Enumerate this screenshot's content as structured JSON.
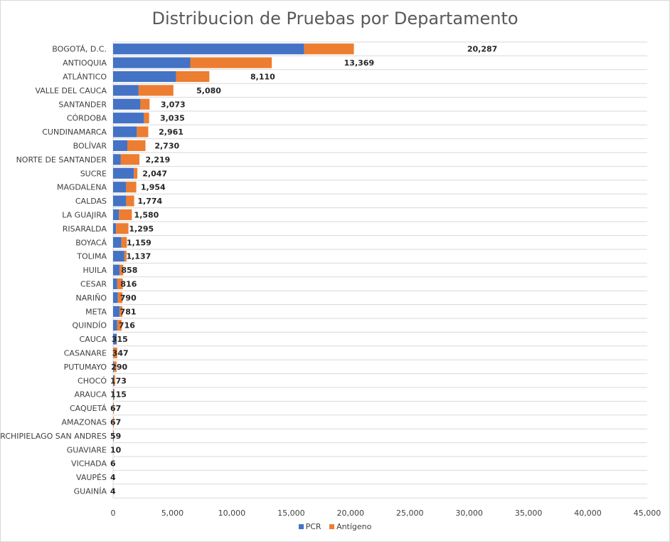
{
  "chart_data": {
    "type": "bar",
    "orientation": "horizontal",
    "stacked": true,
    "title": "Distribucion de Pruebas por Departamento",
    "xlim": [
      0,
      45000
    ],
    "xticks": [
      0,
      5000,
      10000,
      15000,
      20000,
      25000,
      30000,
      35000,
      40000,
      45000
    ],
    "xtick_labels": [
      "0",
      "5,000",
      "10,000",
      "15,000",
      "20,000",
      "25,000",
      "30,000",
      "35,000",
      "40,000",
      "45,000"
    ],
    "grid": true,
    "legend_position": "bottom",
    "categories": [
      "BOGOTÁ, D.C.",
      "ANTIOQUIA",
      "ATLÁNTICO",
      "VALLE DEL CAUCA",
      "SANTANDER",
      "CÓRDOBA",
      "CUNDINAMARCA",
      "BOLÍVAR",
      "NORTE DE SANTANDER",
      "SUCRE",
      "MAGDALENA",
      "CALDAS",
      "LA GUAJIRA",
      "RISARALDA",
      "BOYACÁ",
      "TOLIMA",
      "HUILA",
      "CESAR",
      "NARIÑO",
      "META",
      "QUINDÍO",
      "CAUCA",
      "CASANARE",
      "PUTUMAYO",
      "CHOCÓ",
      "ARAUCA",
      "CAQUETÁ",
      "AMAZONAS",
      "ARCHIPIELAGO SAN ANDRES",
      "GUAVIARE",
      "VICHADA",
      "VAUPÉS",
      "GUAINÍA"
    ],
    "series": [
      {
        "name": "PCR",
        "color": "#4472c4",
        "values": [
          16100,
          6500,
          5300,
          2150,
          2300,
          2600,
          2000,
          1200,
          650,
          1750,
          1100,
          1100,
          500,
          250,
          700,
          950,
          550,
          350,
          400,
          550,
          350,
          300,
          20,
          80,
          60,
          80,
          20,
          10,
          30,
          5,
          3,
          2,
          2
        ]
      },
      {
        "name": "Antígeno",
        "color": "#ed7d31",
        "values": [
          4187,
          6869,
          2810,
          2930,
          773,
          435,
          961,
          1530,
          1569,
          297,
          854,
          674,
          1080,
          1045,
          459,
          187,
          308,
          466,
          390,
          231,
          366,
          15,
          327,
          210,
          113,
          35,
          47,
          57,
          29,
          5,
          3,
          2,
          2
        ]
      }
    ],
    "totals": [
      20287,
      13369,
      8110,
      5080,
      3073,
      3035,
      2961,
      2730,
      2219,
      2047,
      1954,
      1774,
      1580,
      1295,
      1159,
      1137,
      858,
      816,
      790,
      781,
      716,
      315,
      347,
      290,
      173,
      115,
      67,
      67,
      59,
      10,
      6,
      4,
      4
    ],
    "total_labels": [
      "20,287",
      "13,369",
      "8,110",
      "5,080",
      "3,073",
      "3,035",
      "2,961",
      "2,730",
      "2,219",
      "2,047",
      "1,954",
      "1,774",
      "1,580",
      "1,295",
      "1,159",
      "1,137",
      "858",
      "816",
      "790",
      "781",
      "716",
      "315",
      "347",
      "290",
      "173",
      "115",
      "67",
      "67",
      "59",
      "10",
      "6",
      "4",
      "4"
    ]
  }
}
